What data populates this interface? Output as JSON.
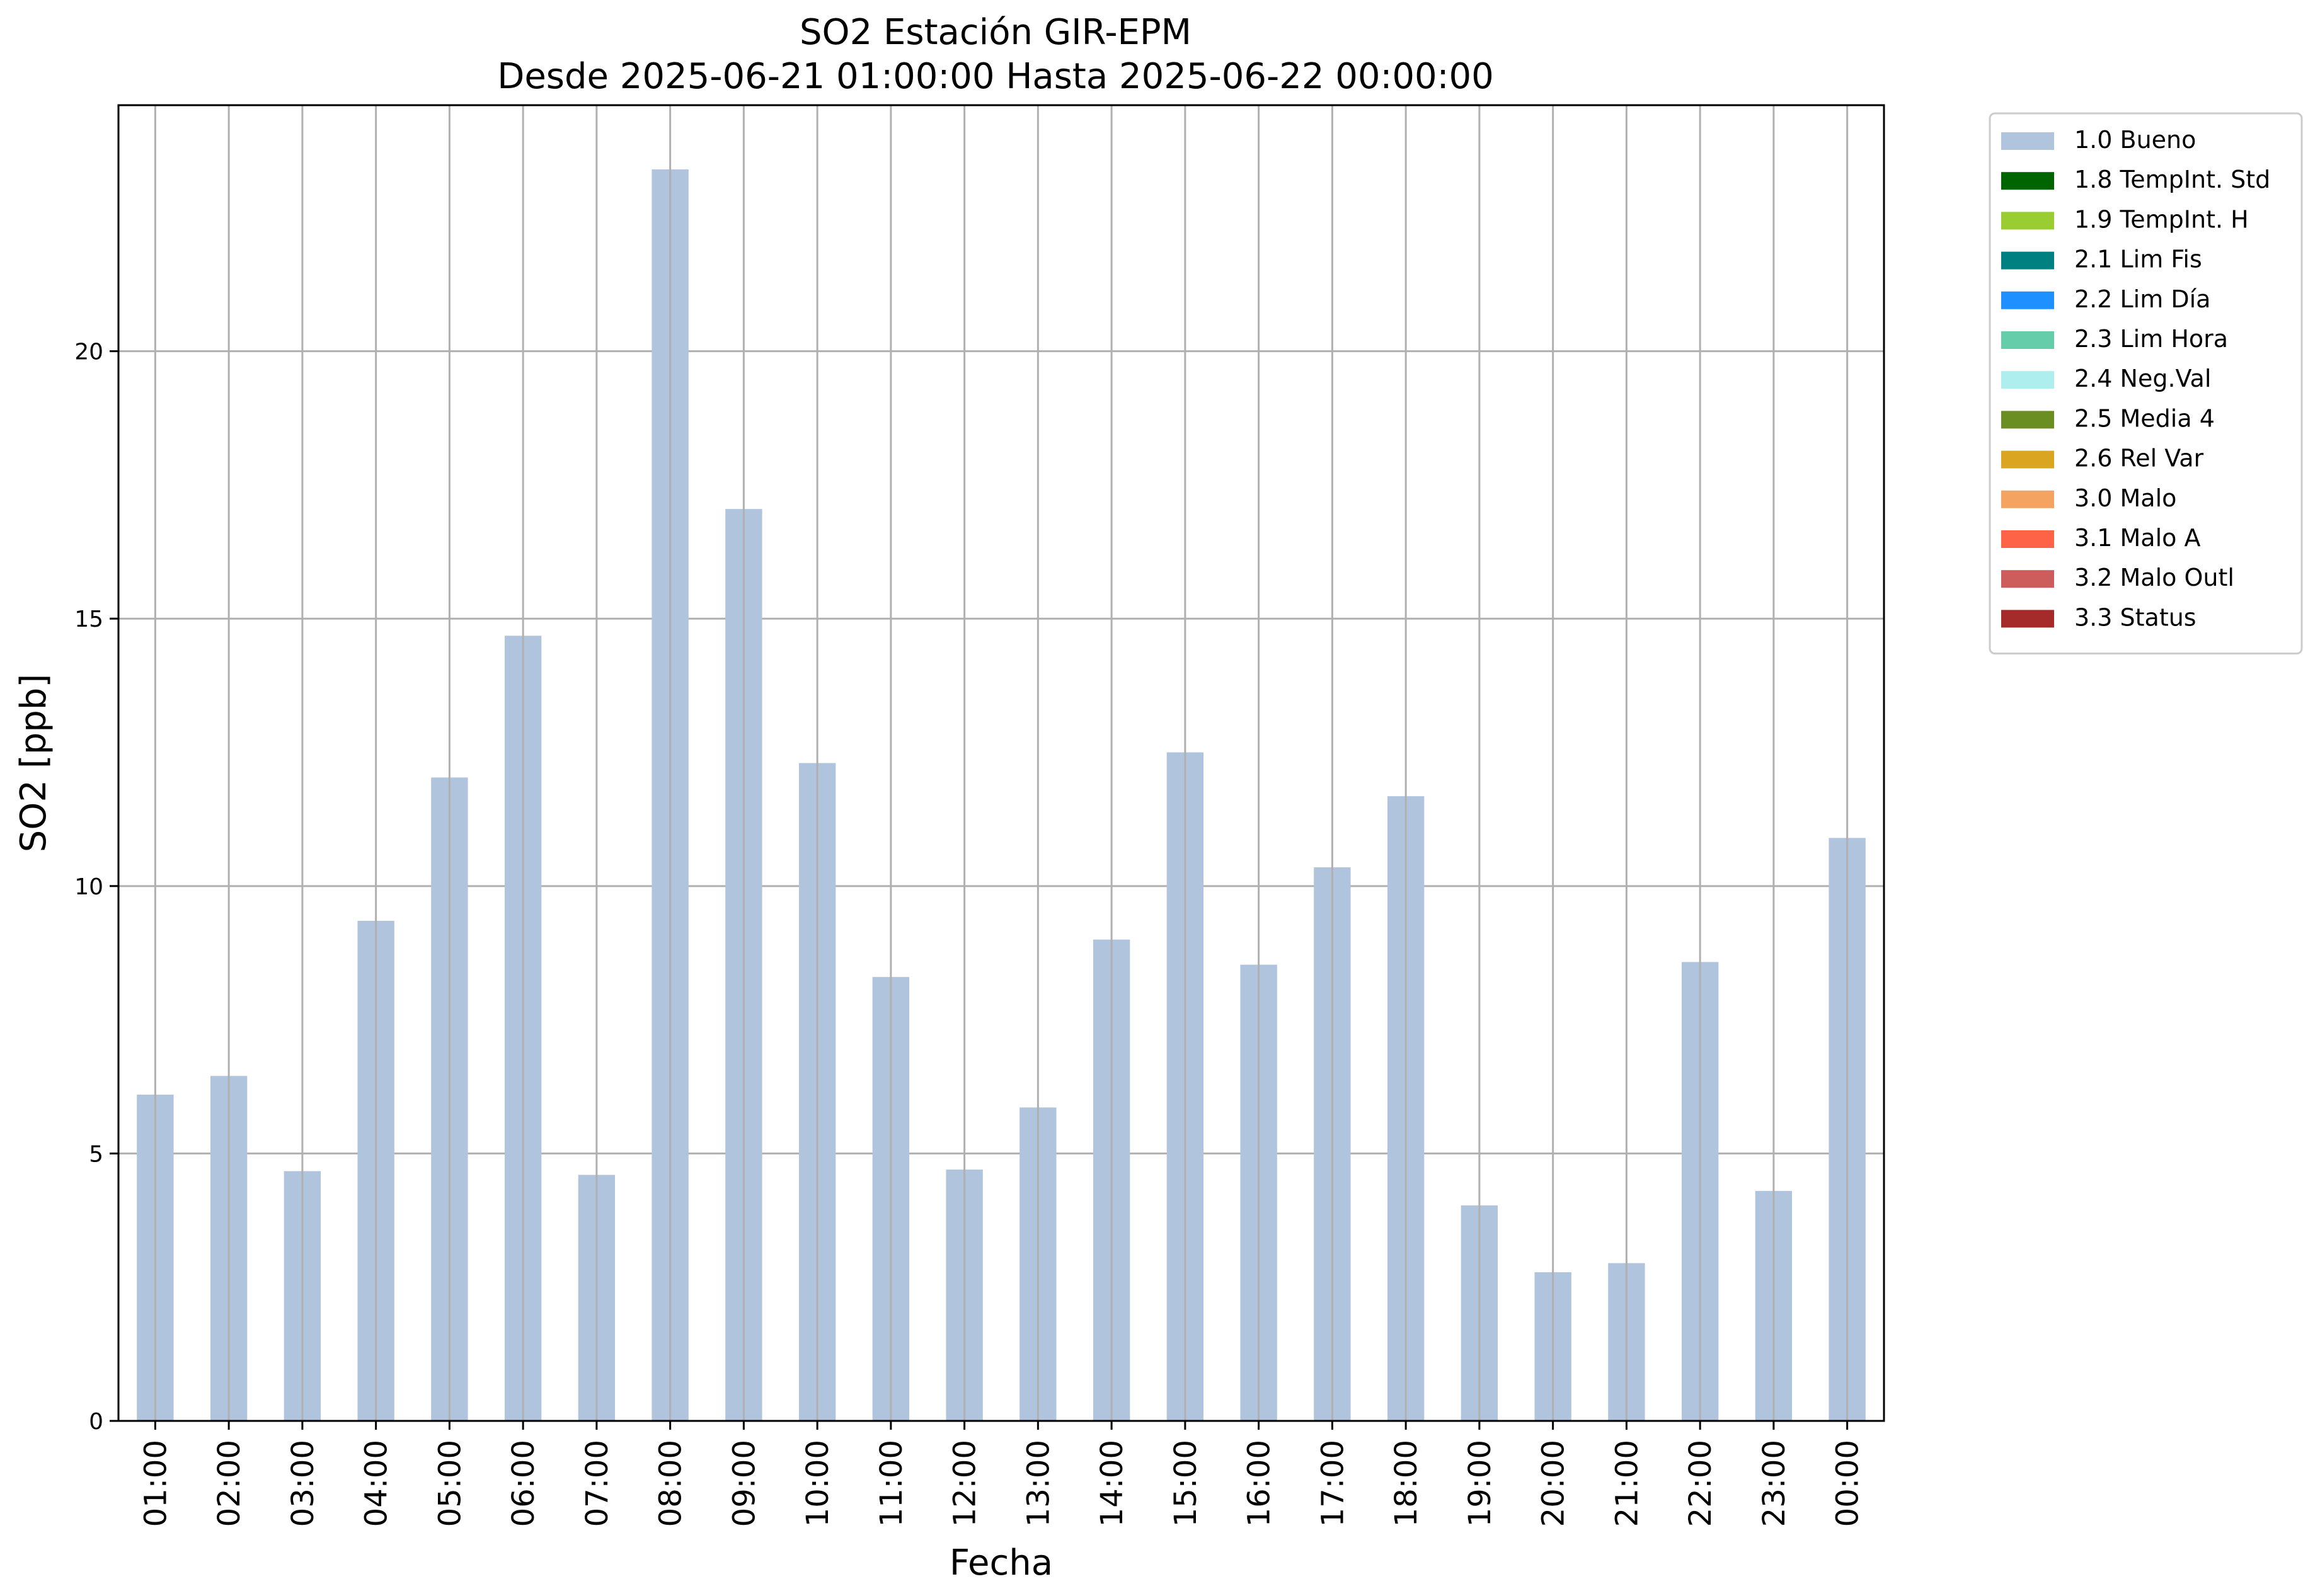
{
  "chart_data": {
    "type": "bar",
    "title": "SO2 Estación GIR-EPM",
    "subtitle": "Desde 2025-06-21 01:00:00 Hasta 2025-06-22 00:00:00",
    "xlabel": "Fecha",
    "ylabel": "SO2 [ppb]",
    "ylim": [
      0,
      24.6
    ],
    "yticks": [
      0,
      5,
      10,
      15,
      20
    ],
    "grid": true,
    "legend_position": "outside-top-right",
    "categories": [
      "01:00",
      "02:00",
      "03:00",
      "04:00",
      "05:00",
      "06:00",
      "07:00",
      "08:00",
      "09:00",
      "10:00",
      "11:00",
      "12:00",
      "13:00",
      "14:00",
      "15:00",
      "16:00",
      "17:00",
      "18:00",
      "19:00",
      "20:00",
      "21:00",
      "22:00",
      "23:00",
      "00:00"
    ],
    "series": [
      {
        "name": "1.0 Bueno",
        "color": "#b0c4de",
        "values": [
          6.1,
          6.45,
          4.67,
          9.35,
          12.03,
          14.68,
          4.6,
          23.4,
          17.05,
          12.3,
          8.3,
          4.7,
          5.86,
          9.0,
          12.5,
          8.53,
          10.35,
          11.68,
          4.03,
          2.78,
          2.95,
          8.58,
          4.3,
          10.9
        ]
      }
    ],
    "legend": [
      {
        "label": "1.0 Bueno",
        "color": "#b0c4de"
      },
      {
        "label": "1.8 TempInt. Std",
        "color": "#006400"
      },
      {
        "label": "1.9 TempInt. H",
        "color": "#9acd32"
      },
      {
        "label": "2.1 Lim Fis",
        "color": "#008080"
      },
      {
        "label": "2.2 Lim Día",
        "color": "#1e90ff"
      },
      {
        "label": "2.3 Lim Hora",
        "color": "#66cdaa"
      },
      {
        "label": "2.4 Neg.Val",
        "color": "#afeeee"
      },
      {
        "label": "2.5 Media 4",
        "color": "#6b8e23"
      },
      {
        "label": "2.6 Rel Var",
        "color": "#daa520"
      },
      {
        "label": "3.0 Malo",
        "color": "#f4a460"
      },
      {
        "label": "3.1 Malo A",
        "color": "#ff6347"
      },
      {
        "label": "3.2 Malo Outl",
        "color": "#cd5c5c"
      },
      {
        "label": "3.3 Status",
        "color": "#a52a2a"
      }
    ]
  }
}
